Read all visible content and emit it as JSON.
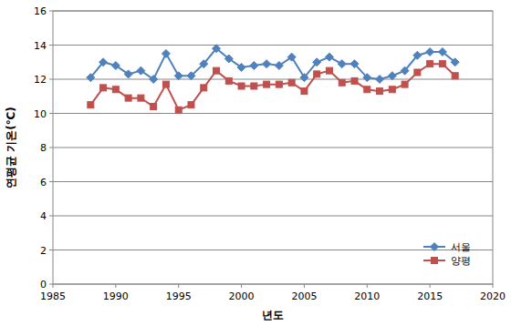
{
  "chart_data": {
    "type": "line",
    "x_label": "년도",
    "y_label": "연평균 기온(℃)",
    "x": [
      1988,
      1989,
      1990,
      1991,
      1992,
      1993,
      1994,
      1995,
      1996,
      1997,
      1998,
      1999,
      2000,
      2001,
      2002,
      2003,
      2004,
      2005,
      2006,
      2007,
      2008,
      2009,
      2010,
      2011,
      2012,
      2013,
      2014,
      2015,
      2016,
      2017
    ],
    "series": [
      {
        "name": "서울",
        "color": "#4f81bd",
        "marker": "diamond",
        "values": [
          12.1,
          13.0,
          12.8,
          12.3,
          12.5,
          12.0,
          13.5,
          12.2,
          12.2,
          12.9,
          13.8,
          13.2,
          12.7,
          12.8,
          12.9,
          12.8,
          13.3,
          12.1,
          13.0,
          13.3,
          12.9,
          12.9,
          12.1,
          12.0,
          12.2,
          12.5,
          13.4,
          13.6,
          13.6,
          13.0
        ]
      },
      {
        "name": "양평",
        "color": "#c0504d",
        "marker": "square",
        "values": [
          10.5,
          11.5,
          11.4,
          10.9,
          10.9,
          10.4,
          11.7,
          10.2,
          10.5,
          11.5,
          12.5,
          11.9,
          11.6,
          11.6,
          11.7,
          11.7,
          11.8,
          11.3,
          12.3,
          12.5,
          11.8,
          11.9,
          11.4,
          11.3,
          11.4,
          11.7,
          12.4,
          12.9,
          12.9,
          12.2
        ]
      }
    ],
    "xlim": [
      1985,
      2020
    ],
    "xticks": [
      1985,
      1990,
      1995,
      2000,
      2005,
      2010,
      2015,
      2020
    ],
    "ylim": [
      0,
      16
    ],
    "yticks": [
      0,
      2,
      4,
      6,
      8,
      10,
      12,
      14,
      16
    ],
    "grid": true,
    "legend": "lower right"
  }
}
